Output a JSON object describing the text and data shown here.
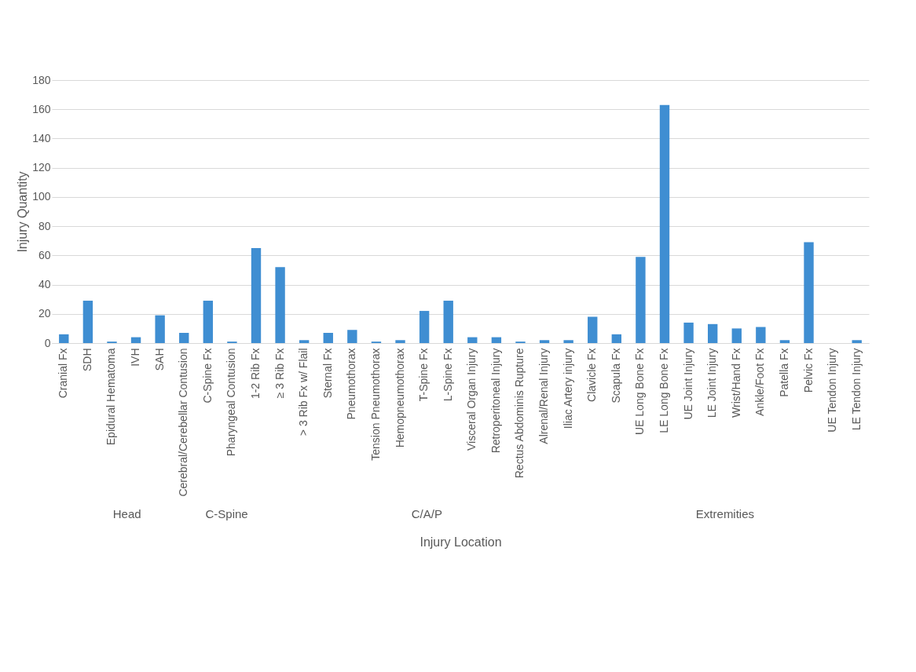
{
  "chart_data": {
    "type": "bar",
    "xlabel": "Injury Location",
    "ylabel": "Injury Quantity",
    "categories": [
      "Cranial Fx",
      "SDH",
      "Epidural Hematoma",
      "IVH",
      "SAH",
      "Cerebral/Cerebellar Contusion",
      "C-Spine Fx",
      "Pharyngeal Contusion",
      "1-2 Rib Fx",
      "≥ 3 Rib Fx",
      "> 3 Rib Fx w/ Flail",
      "Sternal Fx",
      "Pneumothorax",
      "Tension Pneumothorax",
      "Hemopneumothorax",
      "T-Spine Fx",
      "L-Spine Fx",
      "Visceral Organ Injury",
      "Retroperitoneal Injury",
      "Rectus Abdominis Rupture",
      "Alrenal/Renal Injury",
      "Iliac Artery injury",
      "Clavicle Fx",
      "Scapula Fx",
      "UE Long Bone Fx",
      "LE Long Bone Fx",
      "UE Joint Injury",
      "LE Joint Injury",
      "Wrist/Hand Fx",
      "Ankle/Foot Fx",
      "Patella Fx",
      "Pelvic Fx",
      "UE Tendon Injury",
      "LE Tendon Injury"
    ],
    "values": [
      6,
      29,
      1,
      4,
      19,
      7,
      29,
      1,
      65,
      52,
      2,
      7,
      9,
      1,
      2,
      22,
      29,
      4,
      4,
      1,
      2,
      2,
      18,
      6,
      59,
      163,
      14,
      13,
      10,
      11,
      2,
      69,
      0,
      2
    ],
    "color": "#3f8ed2",
    "ylim": [
      0,
      180
    ],
    "yticks": [
      0,
      20,
      40,
      60,
      80,
      100,
      120,
      140,
      160,
      180
    ],
    "grid": "y",
    "annotations": [
      "Head",
      "C-Spine",
      "C/A/P",
      "Extremities"
    ]
  }
}
